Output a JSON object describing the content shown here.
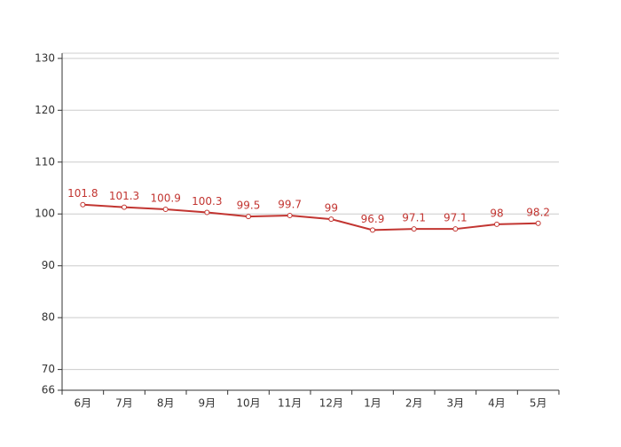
{
  "chart_data": {
    "type": "line",
    "categories": [
      "6月",
      "7月",
      "8月",
      "9月",
      "10月",
      "11月",
      "12月",
      "1月",
      "2月",
      "3月",
      "4月",
      "5月"
    ],
    "series": [
      {
        "color": "#c23531",
        "values": [
          101.8,
          101.3,
          100.9,
          100.3,
          99.5,
          99.7,
          99,
          96.9,
          97.1,
          97.1,
          98,
          98.2
        ]
      }
    ],
    "ylim": [
      66,
      131
    ],
    "yticks": [
      66,
      70,
      80,
      90,
      100,
      110,
      120,
      130
    ],
    "grid": true
  }
}
